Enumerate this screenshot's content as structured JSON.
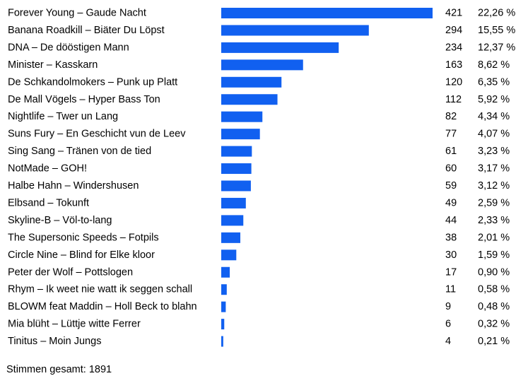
{
  "chart_data": {
    "type": "bar",
    "orientation": "horizontal",
    "bar_color": "#1160f0",
    "categories": [
      "Forever Young – Gaude Nacht",
      "Banana Roadkill – Biäter Du Löpst",
      "DNA – De dööstigen Mann",
      "Minister – Kasskarn",
      "De Schkandolmokers – Punk up Platt",
      "De Mall Vögels – Hyper Bass Ton",
      "Nightlife – Twer un Lang",
      "Suns Fury – En Geschicht vun de Leev",
      "Sing Sang – Tränen von de tied",
      "NotMade – GOH!",
      "Halbe Hahn – Windershusen",
      "Elbsand – Tokunft",
      "Skyline-B – Völ-to-lang",
      "The Supersonic Speeds – Fotpils",
      "Circle Nine – Blind for Elke kloor",
      "Peter der Wolf – Pottslogen",
      "Rhym – Ik weet nie watt ik seggen schall",
      "BLOWM feat Maddin – Holl Beck to blahn",
      "Mia blüht – Lüttje witte Ferrer",
      "Tinitus – Moin Jungs"
    ],
    "values": [
      421,
      294,
      234,
      163,
      120,
      112,
      82,
      77,
      61,
      60,
      59,
      49,
      44,
      38,
      30,
      17,
      11,
      9,
      6,
      4
    ],
    "percent_labels": [
      "22,26 %",
      "15,55 %",
      "12,37 %",
      "8,62 %",
      "6,35 %",
      "5,92 %",
      "4,34 %",
      "4,07 %",
      "3,23 %",
      "3,17 %",
      "3,12 %",
      "2,59 %",
      "2,33 %",
      "2,01 %",
      "1,59 %",
      "0,90 %",
      "0,58 %",
      "0,48 %",
      "0,32 %",
      "0,21 %"
    ],
    "title": "",
    "xlabel": "",
    "ylabel": "",
    "grid": false
  },
  "footer": {
    "total_text": "Stimmen gesamt: 1891"
  }
}
